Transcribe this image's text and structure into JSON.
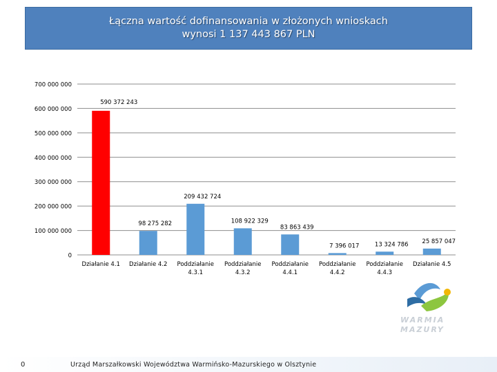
{
  "header": {
    "title_line1": "Łączna wartość dofinansowania w złożonych wnioskach",
    "title_line2": "wynosi 1 137 443 867 PLN"
  },
  "chart_data": {
    "type": "bar",
    "categories": [
      [
        "Działanie 4.1"
      ],
      [
        "Działanie 4.2"
      ],
      [
        "Poddziałanie",
        "4.3.1"
      ],
      [
        "Poddziałanie",
        "4.3.2"
      ],
      [
        "Poddziałanie",
        "4.4.1"
      ],
      [
        "Poddziałanie",
        "4.4.2"
      ],
      [
        "Poddziałanie",
        "4.4.3"
      ],
      [
        "Działanie 4.5"
      ]
    ],
    "values": [
      590372243,
      98275282,
      209432724,
      108922329,
      83863439,
      7396017,
      13324786,
      25857047
    ],
    "data_labels": [
      "590 372 243",
      "98 275 282",
      "209 432 724",
      "108 922 329",
      "83 863 439",
      "7 396 017",
      "13 324 786",
      "25 857 047"
    ],
    "bar_colors": [
      "#ff0000",
      "#5b9bd5",
      "#5b9bd5",
      "#5b9bd5",
      "#5b9bd5",
      "#5b9bd5",
      "#5b9bd5",
      "#5b9bd5"
    ],
    "ylim": [
      0,
      700000000
    ],
    "yticks": [
      0,
      100000000,
      200000000,
      300000000,
      400000000,
      500000000,
      600000000,
      700000000
    ],
    "ytick_labels": [
      "0",
      "100 000 000",
      "200 000 000",
      "300 000 000",
      "400 000 000",
      "500 000 000",
      "600 000 000",
      "700 000 000"
    ],
    "grid": true,
    "title": "",
    "xlabel": "",
    "ylabel": ""
  },
  "footer": {
    "page_number": "0",
    "institution": "Urząd Marszałkowski Województwa Warmińsko-Mazurskiego w Olsztynie"
  },
  "logo": {
    "text_line1": "WARMIA",
    "text_line2": "MAZURY"
  }
}
